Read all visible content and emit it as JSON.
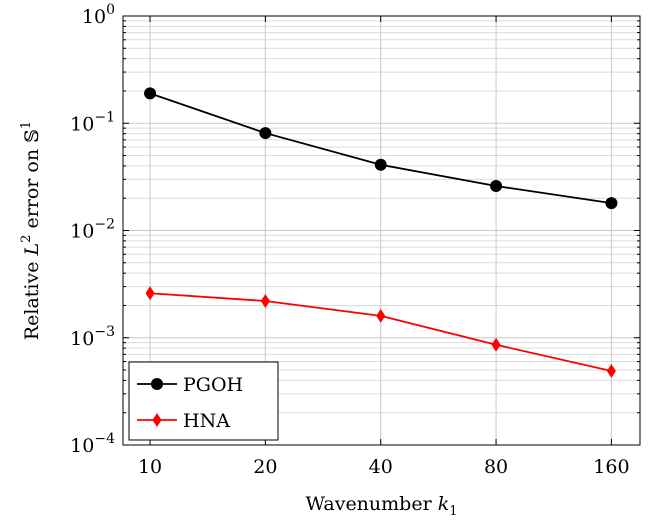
{
  "chart_data": {
    "type": "line",
    "x_scale": "log2",
    "y_scale": "log10",
    "x": [
      10,
      20,
      40,
      80,
      160
    ],
    "x_tick_labels": [
      "10",
      "20",
      "40",
      "80",
      "160"
    ],
    "y_ticks": [
      {
        "value": 0.0001,
        "base": "10",
        "exp": "−4"
      },
      {
        "value": 0.001,
        "base": "10",
        "exp": "−3"
      },
      {
        "value": 0.01,
        "base": "10",
        "exp": "−2"
      },
      {
        "value": 0.1,
        "base": "10",
        "exp": "−1"
      },
      {
        "value": 1,
        "base": "10",
        "exp": "0"
      }
    ],
    "xlim": [
      8.5,
      190
    ],
    "ylim": [
      0.0001,
      1
    ],
    "xlabel": {
      "main": "Wavenumber ",
      "var": "k",
      "sub": "1"
    },
    "ylabel": {
      "pre": "Relative ",
      "var": "L",
      "sup": "2",
      "mid": " error on ",
      "set": "𝕊",
      "sup2": "1"
    },
    "grid": true,
    "legend_position": "bottom-left",
    "series": [
      {
        "name": "PGOH",
        "color": "#000000",
        "marker": "circle",
        "values": [
          0.19,
          0.081,
          0.041,
          0.026,
          0.018
        ]
      },
      {
        "name": "HNA",
        "color": "#ff0000",
        "marker": "diamond",
        "values": [
          0.0026,
          0.0022,
          0.0016,
          0.00086,
          0.00049
        ]
      }
    ]
  }
}
